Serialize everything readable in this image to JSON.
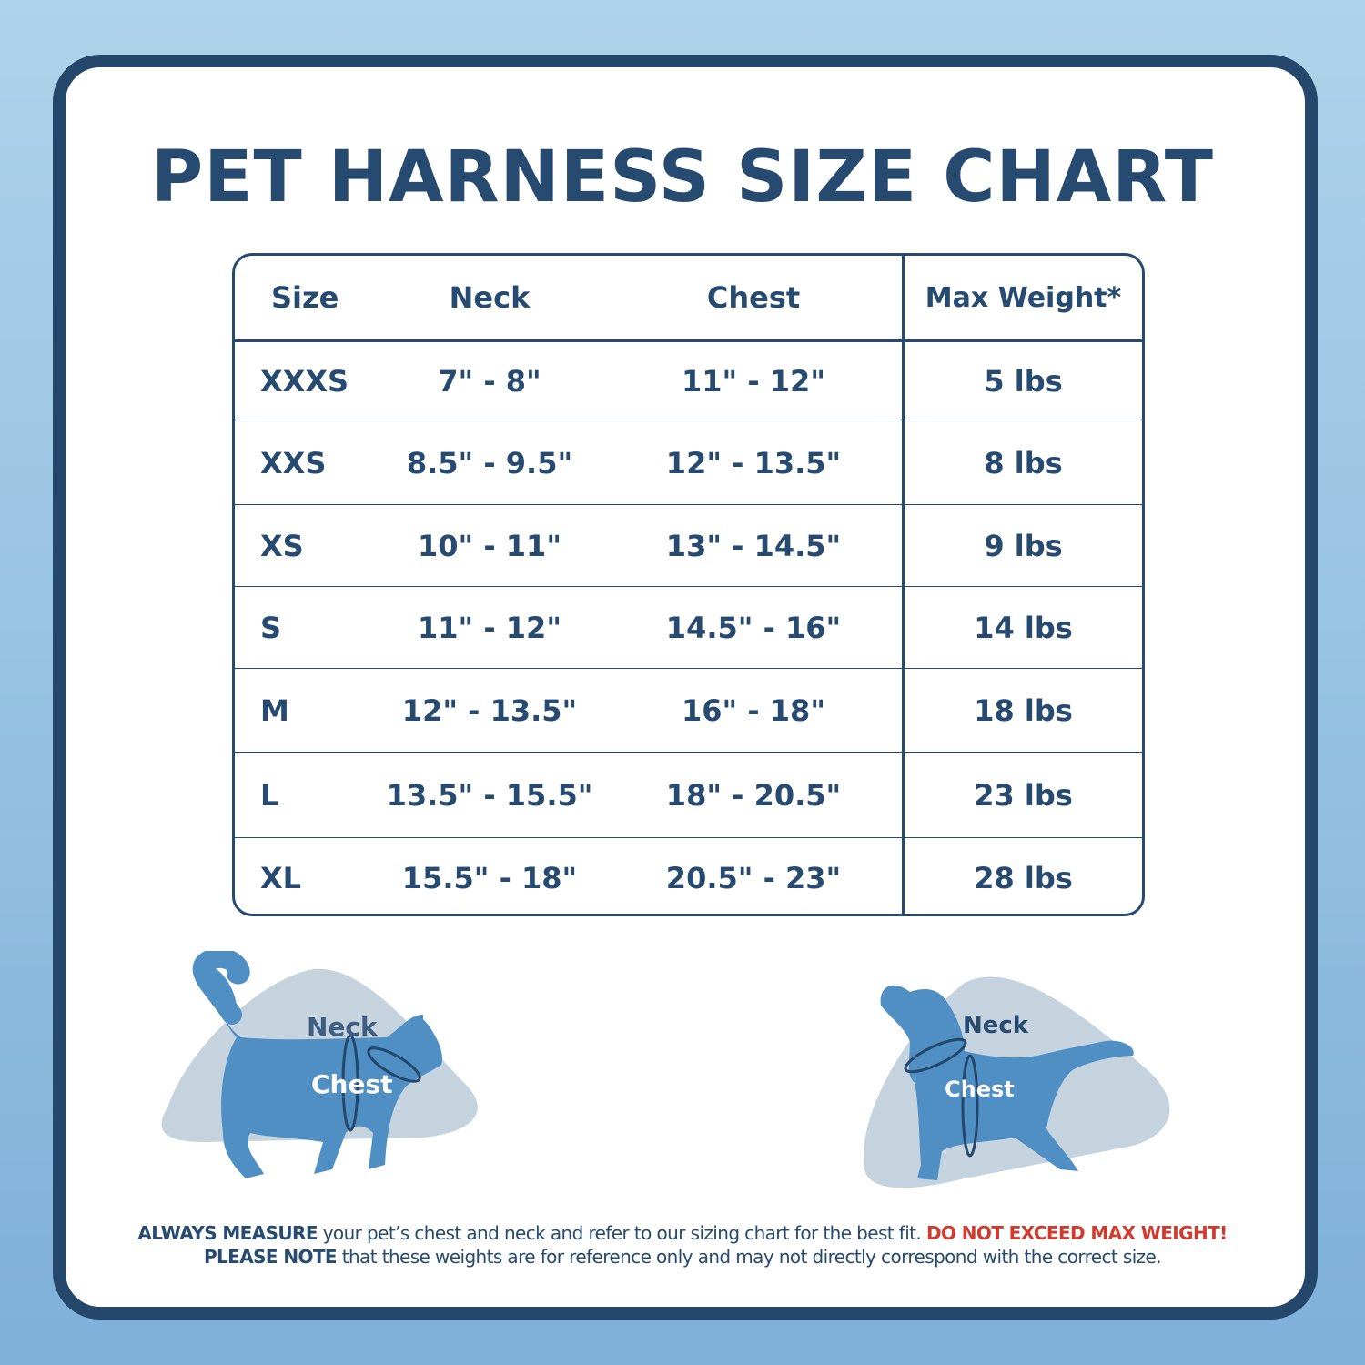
{
  "title": "PET HARNESS SIZE CHART",
  "table": {
    "headers": [
      "Size",
      "Neck",
      "Chest",
      "Max Weight*"
    ],
    "rows": [
      {
        "size": "XXXS",
        "neck": "7\" - 8\"",
        "chest": "11\" - 12\"",
        "weight": "5 lbs"
      },
      {
        "size": "XXS",
        "neck": "8.5\" - 9.5\"",
        "chest": "12\" - 13.5\"",
        "weight": "8 lbs"
      },
      {
        "size": "XS",
        "neck": "10\" - 11\"",
        "chest": "13\" - 14.5\"",
        "weight": "9 lbs"
      },
      {
        "size": "S",
        "neck": "11\" - 12\"",
        "chest": "14.5\" - 16\"",
        "weight": "14 lbs"
      },
      {
        "size": "M",
        "neck": "12\" - 13.5\"",
        "chest": "16\" - 18\"",
        "weight": "18 lbs"
      },
      {
        "size": "L",
        "neck": "13.5\" - 15.5\"",
        "chest": "18\" - 20.5\"",
        "weight": "23 lbs"
      },
      {
        "size": "XL",
        "neck": "15.5\" - 18\"",
        "chest": "20.5\" - 23\"",
        "weight": "28 lbs"
      }
    ]
  },
  "cat": {
    "neck_label": "Neck",
    "chest_label": "Chest"
  },
  "dog": {
    "neck_label": "Neck",
    "chest_label": "Chest"
  },
  "footer": {
    "line1_bold": "ALWAYS MEASURE",
    "line1_text": " your pet’s chest and neck and refer  to our sizing chart for the best fit. ",
    "line1_warning": "DO NOT EXCEED MAX WEIGHT!",
    "line2_bold": "PLEASE NOTE",
    "line2_text": " that these weights are for reference only and may not directly correspond with the correct size."
  },
  "colors": {
    "navy": "#264a70",
    "pet_blue": "#4f8fc4",
    "blob": "#c5d3de",
    "warning_red": "#d13a2f",
    "background": "#97c2e2"
  }
}
